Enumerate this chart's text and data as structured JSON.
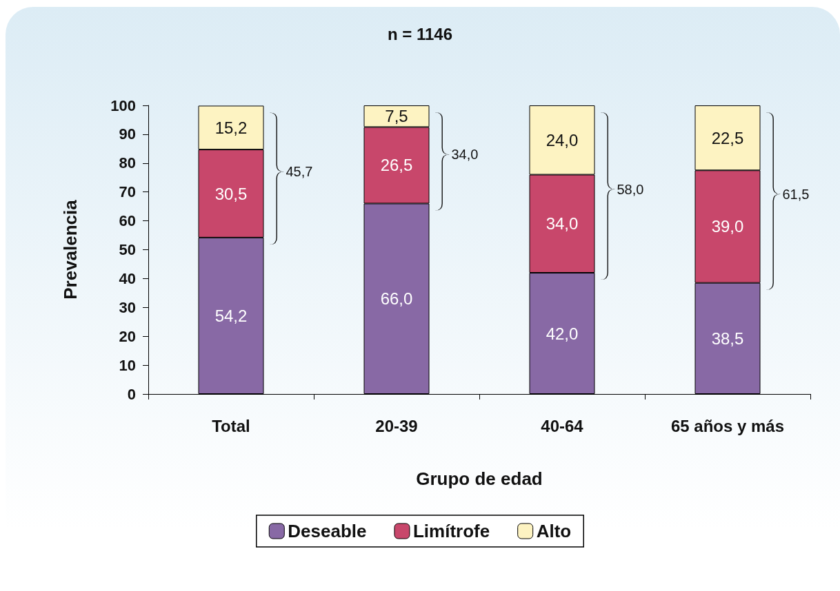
{
  "chart_data": {
    "type": "bar",
    "stacked": true,
    "title": "n = 1146",
    "xlabel": "Grupo de edad",
    "ylabel": "Prevalencia",
    "categories": [
      "Total",
      "20-39",
      "40-64",
      "65 años y más"
    ],
    "series": [
      {
        "name": "Deseable",
        "color": "#8869a5",
        "values": [
          54.2,
          66.0,
          42.0,
          38.5
        ],
        "value_labels": [
          "54,2",
          "66,0",
          "42,0",
          "38,5"
        ]
      },
      {
        "name": "Limítrofe",
        "color": "#c8476b",
        "values": [
          30.5,
          26.5,
          34.0,
          39.0
        ],
        "value_labels": [
          "30,5",
          "26,5",
          "34,0",
          "39,0"
        ]
      },
      {
        "name": "Alto",
        "color": "#fdf3c2",
        "values": [
          15.2,
          7.5,
          24.0,
          22.5
        ],
        "value_labels": [
          "15,2",
          "7,5",
          "24,0",
          "22,5"
        ]
      }
    ],
    "ylim": [
      0,
      100
    ],
    "yticks": [
      0,
      10,
      20,
      30,
      40,
      50,
      60,
      70,
      80,
      90,
      100
    ],
    "grid": false,
    "legend": "bottom",
    "annotations": [
      "45,7",
      "34,0",
      "58,0",
      "61,5"
    ]
  }
}
